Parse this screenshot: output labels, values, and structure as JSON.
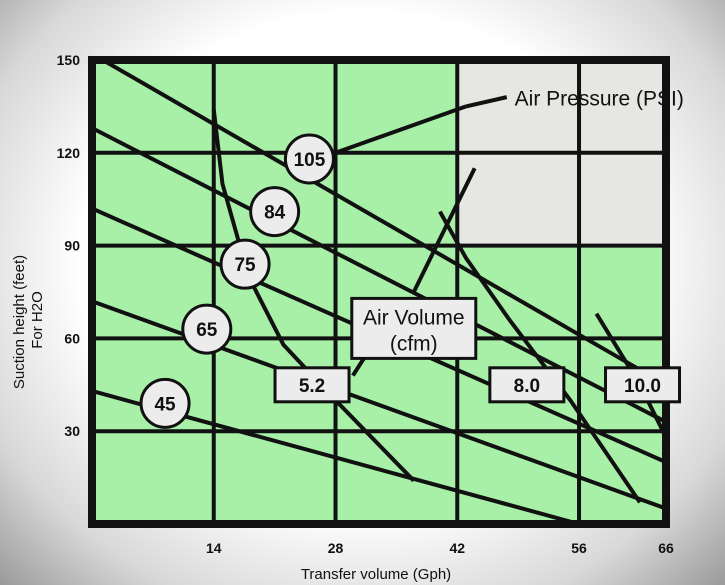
{
  "chart_data": {
    "type": "line",
    "title": "",
    "xlabel": "Transfer volume (Gph)",
    "ylabel": "Suction height (feet)",
    "ylabel_sub": "For H2O",
    "xlim": [
      0,
      66
    ],
    "ylim": [
      0,
      150
    ],
    "x_ticks": [
      14,
      28,
      42,
      56,
      66
    ],
    "y_ticks": [
      30,
      60,
      90,
      120,
      150
    ],
    "grid": true,
    "colors": {
      "plot": "#a8f0a8",
      "inset": "#e6e6e2",
      "lines": "#111111",
      "bubble": "#ececec"
    },
    "pressure_series": [
      {
        "name": "105",
        "points": [
          [
            0,
            152
          ],
          [
            66,
            45
          ]
        ]
      },
      {
        "name": "84",
        "points": [
          [
            0,
            128
          ],
          [
            66,
            33
          ]
        ]
      },
      {
        "name": "75",
        "points": [
          [
            0,
            102
          ],
          [
            66,
            20
          ]
        ]
      },
      {
        "name": "65",
        "points": [
          [
            0,
            72
          ],
          [
            66,
            5
          ]
        ]
      },
      {
        "name": "45",
        "points": [
          [
            0,
            43
          ],
          [
            56,
            0
          ]
        ]
      }
    ],
    "volume_series": [
      {
        "name": "5.2",
        "points": [
          [
            14,
            134
          ],
          [
            15,
            110
          ],
          [
            18,
            80
          ],
          [
            22,
            58
          ],
          [
            28,
            40
          ],
          [
            37,
            14
          ]
        ]
      },
      {
        "name": "8.0",
        "points": [
          [
            40,
            101
          ],
          [
            43,
            86
          ],
          [
            48,
            66
          ],
          [
            55,
            40
          ],
          [
            63,
            7
          ]
        ]
      },
      {
        "name": "10.0",
        "points": [
          [
            58,
            68
          ],
          [
            63,
            45
          ],
          [
            66,
            28
          ]
        ]
      }
    ],
    "bubble_labels": [
      "105",
      "84",
      "75",
      "65",
      "45"
    ],
    "box_labels": [
      "5.2",
      "8.0",
      "10.0"
    ],
    "annotations": {
      "air_pressure": "Air Pressure (PSI)",
      "air_volume_line1": "Air Volume",
      "air_volume_line2": "(cfm)"
    }
  }
}
